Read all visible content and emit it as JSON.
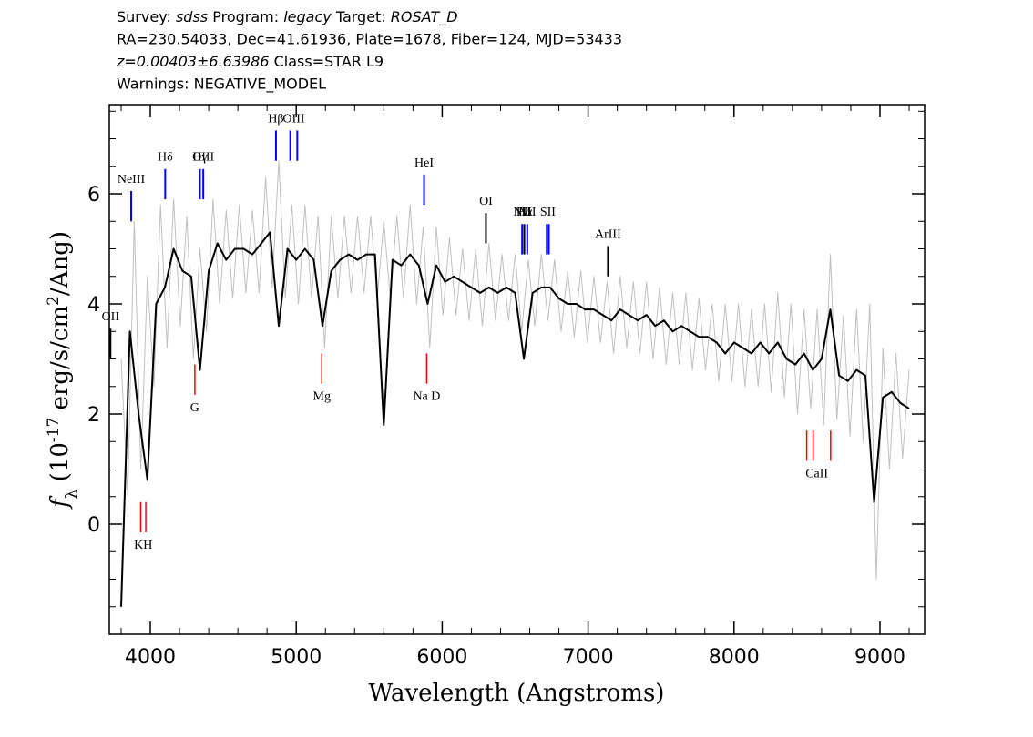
{
  "chart_data": {
    "type": "line",
    "header": [
      [
        {
          "text": "Survey: "
        },
        {
          "text": "sdss",
          "italic": true
        },
        {
          "text": " Program: "
        },
        {
          "text": "legacy",
          "italic": true
        },
        {
          "text": " Target: "
        },
        {
          "text": "ROSAT_D",
          "italic": true
        }
      ],
      [
        {
          "text": "RA=230.54033, Dec=41.61936, Plate=1678, Fiber=124, MJD=53433"
        }
      ],
      [
        {
          "text": "z=0.00403±6.63986",
          "italic": true
        },
        {
          "text": " Class=STAR L9"
        }
      ],
      [
        {
          "text": "Warnings: NEGATIVE_MODEL"
        }
      ]
    ],
    "x_label": "Wavelength (Angstroms)",
    "y_label": [
      {
        "text": "f",
        "italic": true
      },
      {
        "text": "λ",
        "sub": true
      },
      {
        "text": " (10"
      },
      {
        "text": "-17",
        "sup": true
      },
      {
        "text": " erg/s/cm"
      },
      {
        "text": "2",
        "sup": true
      },
      {
        "text": "/Ang)"
      }
    ],
    "xlim": [
      3719,
      9306
    ],
    "ylim": [
      -2,
      7.62
    ],
    "xticks": [
      4000,
      5000,
      6000,
      7000,
      8000,
      9000
    ],
    "yticks": [
      0,
      2,
      4,
      6
    ],
    "xminorticks": [
      3800,
      4200,
      4400,
      4600,
      4800,
      5200,
      5400,
      5600,
      5800,
      6200,
      6400,
      6600,
      6800,
      7200,
      7400,
      7600,
      7800,
      8200,
      8400,
      8600,
      8800,
      9200
    ],
    "yminorticks": [
      -1.5,
      -1,
      -0.5,
      0.5,
      1,
      1.5,
      2.5,
      3,
      3.5,
      4.5,
      5,
      5.5,
      6.5,
      7,
      7.5
    ],
    "series": [
      {
        "color": "#c0c0c0",
        "x": [
          3800,
          3845,
          3890,
          3935,
          3980,
          4025,
          4070,
          4115,
          4160,
          4205,
          4250,
          4295,
          4340,
          4385,
          4430,
          4475,
          4520,
          4565,
          4610,
          4655,
          4700,
          4745,
          4790,
          4835,
          4880,
          4925,
          4970,
          5015,
          5060,
          5105,
          5150,
          5195,
          5240,
          5285,
          5330,
          5375,
          5420,
          5465,
          5510,
          5555,
          5600,
          5645,
          5690,
          5735,
          5780,
          5825,
          5870,
          5915,
          5960,
          6005,
          6050,
          6095,
          6140,
          6185,
          6230,
          6275,
          6320,
          6365,
          6410,
          6455,
          6500,
          6545,
          6590,
          6635,
          6680,
          6725,
          6770,
          6815,
          6860,
          6905,
          6950,
          6995,
          7040,
          7085,
          7130,
          7175,
          7220,
          7265,
          7310,
          7355,
          7400,
          7445,
          7490,
          7535,
          7580,
          7625,
          7670,
          7715,
          7760,
          7805,
          7850,
          7895,
          7940,
          7985,
          8030,
          8075,
          8120,
          8165,
          8210,
          8255,
          8300,
          8345,
          8390,
          8435,
          8480,
          8525,
          8570,
          8615,
          8660,
          8705,
          8750,
          8795,
          8840,
          8885,
          8930,
          8975,
          9020,
          9065,
          9110,
          9155,
          9200
        ],
        "values": [
          3.0,
          0.5,
          5.5,
          1.0,
          4.5,
          2.5,
          5.8,
          3.2,
          5.9,
          3.6,
          5.6,
          3.0,
          5.0,
          3.5,
          5.9,
          4.0,
          5.7,
          4.1,
          5.8,
          4.2,
          5.7,
          4.2,
          6.3,
          4.3,
          6.6,
          4.1,
          5.8,
          4.0,
          5.8,
          4.1,
          5.6,
          3.2,
          5.6,
          4.1,
          5.6,
          4.2,
          5.6,
          4.2,
          5.6,
          4.1,
          5.5,
          4.1,
          5.6,
          4.1,
          5.8,
          4.0,
          5.4,
          3.2,
          5.4,
          3.8,
          5.2,
          3.8,
          5.0,
          3.7,
          5.0,
          3.6,
          5.1,
          3.7,
          4.9,
          3.7,
          4.9,
          3.5,
          4.8,
          3.6,
          4.9,
          3.7,
          4.8,
          3.5,
          4.6,
          3.4,
          4.6,
          3.3,
          4.5,
          3.3,
          4.4,
          3.1,
          4.5,
          3.2,
          4.4,
          3.1,
          4.4,
          3.0,
          4.3,
          2.9,
          4.2,
          2.9,
          4.2,
          2.8,
          4.1,
          2.8,
          4.0,
          2.6,
          4.0,
          2.6,
          4.0,
          2.5,
          3.9,
          2.5,
          4.0,
          2.4,
          4.2,
          2.3,
          4.0,
          2.0,
          3.9,
          2.1,
          3.9,
          1.8,
          4.9,
          1.9,
          3.8,
          1.6,
          3.9,
          1.5,
          4.0,
          -1.0,
          3.2,
          1.0,
          3.1,
          1.2,
          2.8
        ]
      },
      {
        "color": "#000000",
        "x": [
          3800,
          3860,
          3920,
          3980,
          4040,
          4100,
          4160,
          4220,
          4280,
          4340,
          4400,
          4460,
          4520,
          4580,
          4640,
          4700,
          4760,
          4820,
          4880,
          4940,
          5000,
          5060,
          5120,
          5180,
          5240,
          5300,
          5360,
          5420,
          5480,
          5540,
          5600,
          5660,
          5720,
          5780,
          5840,
          5900,
          5960,
          6020,
          6080,
          6140,
          6200,
          6260,
          6320,
          6380,
          6440,
          6500,
          6560,
          6620,
          6680,
          6740,
          6800,
          6860,
          6920,
          6980,
          7040,
          7100,
          7160,
          7220,
          7280,
          7340,
          7400,
          7460,
          7520,
          7580,
          7640,
          7700,
          7760,
          7820,
          7880,
          7940,
          8000,
          8060,
          8120,
          8180,
          8240,
          8300,
          8360,
          8420,
          8480,
          8540,
          8600,
          8660,
          8720,
          8780,
          8840,
          8900,
          8960,
          9020,
          9080,
          9140,
          9200
        ],
        "values": [
          -1.5,
          3.5,
          2.0,
          0.8,
          4.0,
          4.3,
          5.0,
          4.6,
          4.5,
          2.8,
          4.6,
          5.1,
          4.8,
          5.0,
          5.0,
          4.9,
          5.1,
          5.3,
          3.6,
          5.0,
          4.8,
          5.0,
          4.8,
          3.6,
          4.6,
          4.8,
          4.9,
          4.8,
          4.9,
          4.9,
          1.8,
          4.8,
          4.7,
          4.9,
          4.7,
          4.0,
          4.7,
          4.4,
          4.5,
          4.4,
          4.3,
          4.2,
          4.3,
          4.2,
          4.3,
          4.2,
          3.0,
          4.2,
          4.3,
          4.3,
          4.1,
          4.0,
          4.0,
          3.9,
          3.9,
          3.8,
          3.7,
          3.9,
          3.8,
          3.7,
          3.8,
          3.6,
          3.7,
          3.5,
          3.6,
          3.5,
          3.4,
          3.4,
          3.3,
          3.1,
          3.3,
          3.2,
          3.1,
          3.3,
          3.1,
          3.3,
          3.0,
          2.9,
          3.1,
          2.8,
          3.0,
          3.9,
          2.7,
          2.6,
          2.8,
          2.7,
          0.4,
          2.3,
          2.4,
          2.2,
          2.1
        ]
      }
    ],
    "emission_lines": [
      {
        "label": "OII",
        "wavelengths": [
          3727
        ],
        "color": "#000000"
      },
      {
        "label": "NeIII",
        "wavelengths": [
          3869
        ],
        "color": "#0000ff"
      },
      {
        "label": "Hδ",
        "wavelengths": [
          4102
        ],
        "color": "#0000ff"
      },
      {
        "label": "Hγ",
        "wavelengths": [
          4340
        ],
        "color": "#0000ff"
      },
      {
        "label": "OIII",
        "wavelengths": [
          4363
        ],
        "color": "#0000ff"
      },
      {
        "label": "Hβ",
        "wavelengths": [
          4861
        ],
        "color": "#0000ff"
      },
      {
        "label": "OIII",
        "wavelengths": [
          4959,
          5007
        ],
        "color": "#0000ff"
      },
      {
        "label": "HeI",
        "wavelengths": [
          5876
        ],
        "color": "#0000ff"
      },
      {
        "label": "OI",
        "wavelengths": [
          6300
        ],
        "color": "#000000"
      },
      {
        "label": "NII",
        "wavelengths": [
          6548
        ],
        "color": "#0000ff"
      },
      {
        "label": "Hα",
        "wavelengths": [
          6563
        ],
        "color": "#000000"
      },
      {
        "label": "NII",
        "wavelengths": [
          6583
        ],
        "color": "#0000ff"
      },
      {
        "label": "SII",
        "wavelengths": [
          6717,
          6731
        ],
        "color": "#0000ff"
      },
      {
        "label": "ArIII",
        "wavelengths": [
          7136
        ],
        "color": "#000000"
      }
    ],
    "absorption_lines": [
      {
        "label": "KH",
        "wavelengths": [
          3934,
          3969
        ],
        "color": "#ff0000"
      },
      {
        "label": "G",
        "wavelengths": [
          4305
        ],
        "color": "#ff0000"
      },
      {
        "label": "Mg",
        "wavelengths": [
          5175
        ],
        "color": "#ff0000"
      },
      {
        "label": "Na D",
        "wavelengths": [
          5894
        ],
        "color": "#ff0000"
      },
      {
        "label": "CaII",
        "wavelengths": [
          8498,
          8542,
          8662
        ],
        "color": "#ff0000"
      }
    ]
  }
}
